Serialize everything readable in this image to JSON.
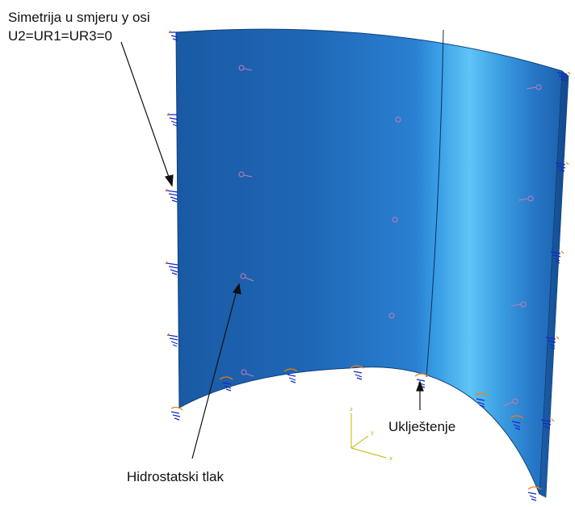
{
  "annotations": {
    "symmetry_line1": "Simetrija u smjeru y osi",
    "symmetry_line2": "U2=UR1=UR3=0",
    "fixed_support": "Uklještenje",
    "hydrostatic_pressure": "Hidrostatski tlak"
  },
  "triad": {
    "z": "z",
    "y": "y",
    "x": "x"
  },
  "colors": {
    "shell_dark": "#1a5ea8",
    "shell_mid": "#2a7fd0",
    "shell_highlight": "#5fc3f5",
    "bc_symbol": "#1428c8",
    "bc_arrow": "#ff7a00",
    "load_symbol": "#c87ab4",
    "triad": "#b8b800"
  },
  "icons": [
    "symmetry-bc-icon",
    "encastre-bc-icon",
    "pressure-load-icon",
    "coordinate-triad-icon"
  ]
}
